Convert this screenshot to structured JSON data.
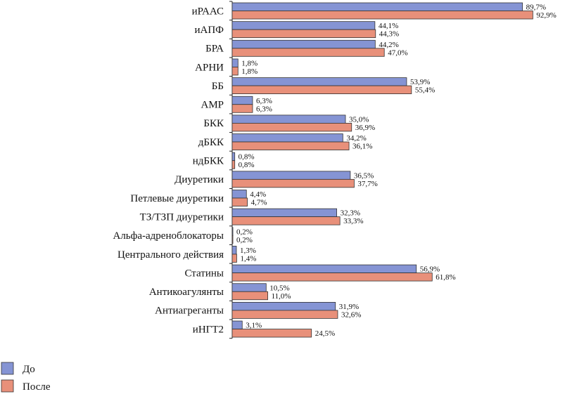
{
  "chart_data": {
    "type": "bar",
    "orientation": "horizontal",
    "title": "",
    "xlabel": "",
    "ylabel": "",
    "xlim": [
      0,
      100
    ],
    "grid": false,
    "legend_position": "bottom-left",
    "value_suffix": "%",
    "categories": [
      "иРААС",
      "иАПФ",
      "БРА",
      "АРНИ",
      "ББ",
      "АМР",
      "БКК",
      "дБКК",
      "ндБКК",
      "Диуретики",
      "Петлевые диуретики",
      "ТЗ/ТЗП диуретики",
      "Альфа-адреноблокаторы",
      "Центрального действия",
      "Статины",
      "Антикоагулянты",
      "Антиагреганты",
      "иНГТ2"
    ],
    "series": [
      {
        "name": "До",
        "color": "#8594d4",
        "values": [
          89.7,
          44.1,
          44.2,
          1.8,
          53.9,
          6.3,
          35.0,
          34.2,
          0.8,
          36.5,
          4.4,
          32.3,
          0.2,
          1.3,
          56.9,
          10.5,
          31.9,
          3.1
        ]
      },
      {
        "name": "После",
        "color": "#e8907a",
        "values": [
          92.9,
          44.3,
          47.0,
          1.8,
          55.4,
          6.3,
          36.9,
          36.1,
          0.8,
          37.7,
          4.7,
          33.3,
          0.2,
          1.4,
          61.8,
          11.0,
          32.6,
          24.5
        ]
      }
    ]
  }
}
